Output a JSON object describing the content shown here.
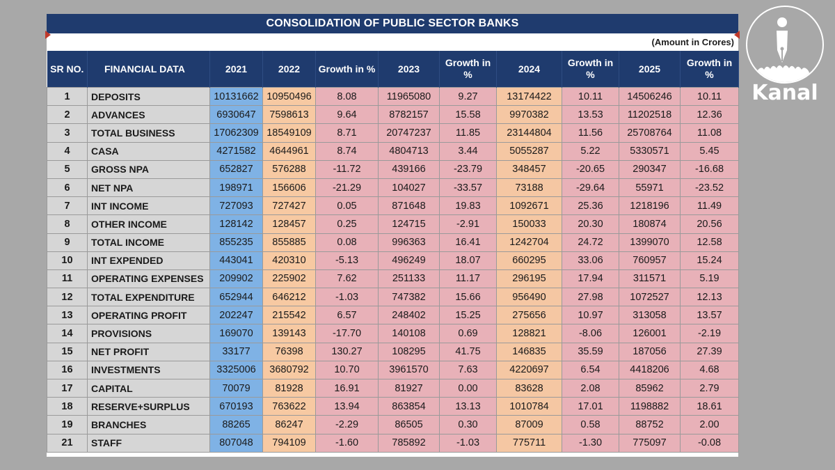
{
  "header": {
    "title": "CONSOLIDATION OF PUBLIC SECTOR BANKS",
    "amount_note": "(Amount in Crores)"
  },
  "columns": [
    "SR NO.",
    "FINANCIAL DATA",
    "2021",
    "2022",
    "Growth in %",
    "2023",
    "Growth in %",
    "2024",
    "Growth in %",
    "2025",
    "Growth in %"
  ],
  "rows": [
    [
      "1",
      "DEPOSITS",
      "10131662",
      "10950496",
      "8.08",
      "11965080",
      "9.27",
      "13174422",
      "10.11",
      "14506246",
      "10.11"
    ],
    [
      "2",
      "ADVANCES",
      "6930647",
      "7598613",
      "9.64",
      "8782157",
      "15.58",
      "9970382",
      "13.53",
      "11202518",
      "12.36"
    ],
    [
      "3",
      "TOTAL BUSINESS",
      "17062309",
      "18549109",
      "8.71",
      "20747237",
      "11.85",
      "23144804",
      "11.56",
      "25708764",
      "11.08"
    ],
    [
      "4",
      "CASA",
      "4271582",
      "4644961",
      "8.74",
      "4804713",
      "3.44",
      "5055287",
      "5.22",
      "5330571",
      "5.45"
    ],
    [
      "5",
      "GROSS NPA",
      "652827",
      "576288",
      "-11.72",
      "439166",
      "-23.79",
      "348457",
      "-20.65",
      "290347",
      "-16.68"
    ],
    [
      "6",
      "NET NPA",
      "198971",
      "156606",
      "-21.29",
      "104027",
      "-33.57",
      "73188",
      "-29.64",
      "55971",
      "-23.52"
    ],
    [
      "7",
      "INT INCOME",
      "727093",
      "727427",
      "0.05",
      "871648",
      "19.83",
      "1092671",
      "25.36",
      "1218196",
      "11.49"
    ],
    [
      "8",
      "OTHER INCOME",
      "128142",
      "128457",
      "0.25",
      "124715",
      "-2.91",
      "150033",
      "20.30",
      "180874",
      "20.56"
    ],
    [
      "9",
      "TOTAL INCOME",
      "855235",
      "855885",
      "0.08",
      "996363",
      "16.41",
      "1242704",
      "24.72",
      "1399070",
      "12.58"
    ],
    [
      "10",
      "INT EXPENDED",
      "443041",
      "420310",
      "-5.13",
      "496249",
      "18.07",
      "660295",
      "33.06",
      "760957",
      "15.24"
    ],
    [
      "11",
      "OPERATING EXPENSES",
      "209902",
      "225902",
      "7.62",
      "251133",
      "11.17",
      "296195",
      "17.94",
      "311571",
      "5.19"
    ],
    [
      "12",
      "TOTAL EXPENDITURE",
      "652944",
      "646212",
      "-1.03",
      "747382",
      "15.66",
      "956490",
      "27.98",
      "1072527",
      "12.13"
    ],
    [
      "13",
      "OPERATING PROFIT",
      "202247",
      "215542",
      "6.57",
      "248402",
      "15.25",
      "275656",
      "10.97",
      "313058",
      "13.57"
    ],
    [
      "14",
      "PROVISIONS",
      "169070",
      "139143",
      "-17.70",
      "140108",
      "0.69",
      "128821",
      "-8.06",
      "126001",
      "-2.19"
    ],
    [
      "15",
      "NET PROFIT",
      "33177",
      "76398",
      "130.27",
      "108295",
      "41.75",
      "146835",
      "35.59",
      "187056",
      "27.39"
    ],
    [
      "16",
      "INVESTMENTS",
      "3325006",
      "3680792",
      "10.70",
      "3961570",
      "7.63",
      "4220697",
      "6.54",
      "4418206",
      "4.68"
    ],
    [
      "17",
      "CAPITAL",
      "70079",
      "81928",
      "16.91",
      "81927",
      "0.00",
      "83628",
      "2.08",
      "85962",
      "2.79"
    ],
    [
      "18",
      "RESERVE+SURPLUS",
      "670193",
      "763622",
      "13.94",
      "863854",
      "13.13",
      "1010784",
      "17.01",
      "1198882",
      "18.61"
    ],
    [
      "19",
      "BRANCHES",
      "88265",
      "86247",
      "-2.29",
      "86505",
      "0.30",
      "87009",
      "0.58",
      "88752",
      "2.00"
    ],
    [
      "21",
      "STAFF",
      "807048",
      "794109",
      "-1.60",
      "785892",
      "-1.03",
      "775711",
      "-1.30",
      "775097",
      "-0.08"
    ]
  ],
  "logo": {
    "word": "Kanal",
    "icon": "pen-nib-crowd-icon"
  },
  "colors": {
    "header_bg": "#1f3b6e",
    "col_2021": "#7fb2e5",
    "col_2022": "#f7c9a2",
    "col_growth": "#e8b1b8",
    "col_2024": "#f5c7a3",
    "label_bg": "#d6d6d6",
    "background": "#a8a8a8"
  }
}
